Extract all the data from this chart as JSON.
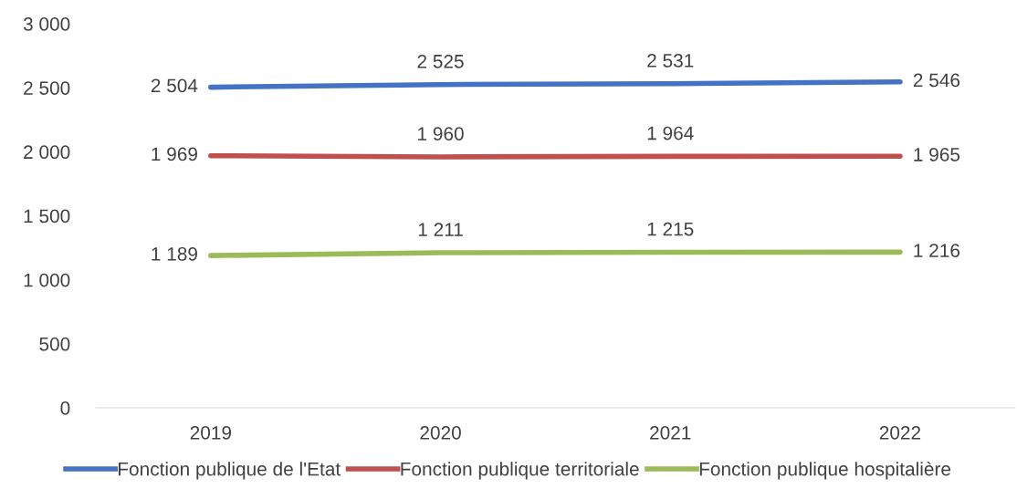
{
  "chart_data": {
    "type": "line",
    "categories": [
      "2019",
      "2020",
      "2021",
      "2022"
    ],
    "series": [
      {
        "name": "Fonction publique de l'Etat",
        "color": "#4472c4",
        "values": [
          2504,
          2525,
          2531,
          2546
        ],
        "value_labels": [
          "2 504",
          "2 525",
          "2 531",
          "2 546"
        ]
      },
      {
        "name": "Fonction publique territoriale",
        "color": "#c0504d",
        "values": [
          1969,
          1960,
          1964,
          1965
        ],
        "value_labels": [
          "1 969",
          "1 960",
          "1 964",
          "1 965"
        ]
      },
      {
        "name": "Fonction publique hospitalière",
        "color": "#9bbb59",
        "values": [
          1189,
          1211,
          1215,
          1216
        ],
        "value_labels": [
          "1 189",
          "1 211",
          "1 215",
          "1 216"
        ]
      }
    ],
    "ylim": [
      0,
      3000
    ],
    "yticks": [
      0,
      500,
      {
        "value": 1000,
        "label": "1 000"
      },
      {
        "value": 1500,
        "label": "1 500"
      },
      {
        "value": 2000,
        "label": "2 000"
      },
      {
        "value": 2500,
        "label": "2 500"
      },
      {
        "value": 3000,
        "label": "3 000"
      }
    ],
    "grid": false,
    "legend": "bottom",
    "marker": "none",
    "line_style": "solid"
  }
}
